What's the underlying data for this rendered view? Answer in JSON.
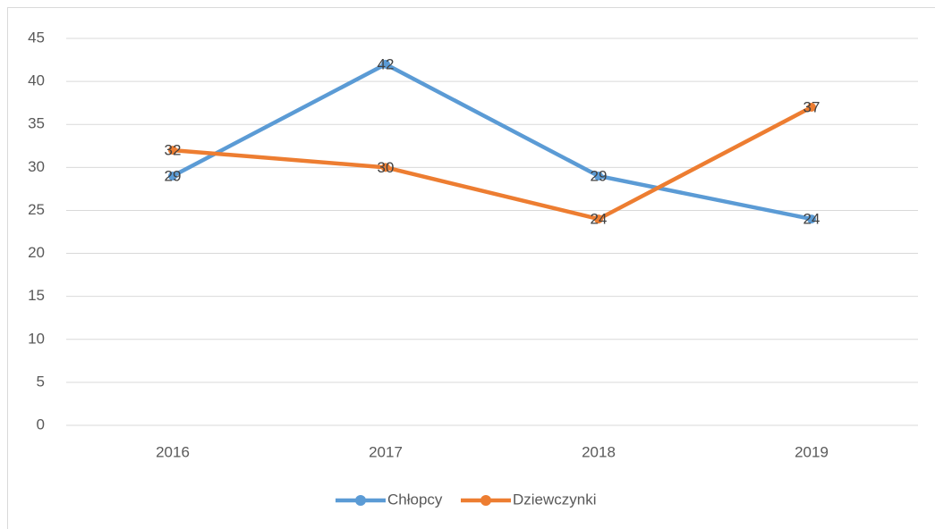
{
  "chart_data": {
    "type": "line",
    "categories": [
      "2016",
      "2017",
      "2018",
      "2019"
    ],
    "series": [
      {
        "name": "Chłopcy",
        "color": "#5b9bd5",
        "values": [
          29,
          42,
          29,
          24
        ]
      },
      {
        "name": "Dziewczynki",
        "color": "#ed7d31",
        "values": [
          32,
          30,
          24,
          37
        ]
      }
    ],
    "ylim": [
      0,
      45
    ],
    "yticks": [
      0,
      5,
      10,
      15,
      20,
      25,
      30,
      35,
      40,
      45
    ],
    "grid": true,
    "legend": "bottom",
    "data_labels": true
  }
}
